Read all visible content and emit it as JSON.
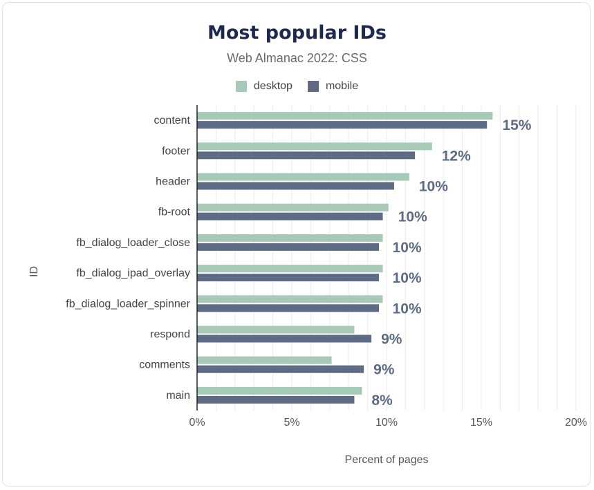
{
  "colors": {
    "desktop": "#a6c9b8",
    "mobile": "#5d6b85",
    "label": "#5d6b85",
    "grid": "#ebebeb",
    "axis": "#222222"
  },
  "chart_data": {
    "type": "bar",
    "orientation": "horizontal",
    "title": "Most popular IDs",
    "subtitle": "Web Almanac 2022: CSS",
    "xlabel": "Percent of pages",
    "ylabel": "ID",
    "xlim": [
      0,
      20
    ],
    "xticks": [
      "0%",
      "5%",
      "10%",
      "15%",
      "20%"
    ],
    "grid": true,
    "legend": "top-center",
    "categories": [
      "content",
      "footer",
      "header",
      "fb-root",
      "fb_dialog_loader_close",
      "fb_dialog_ipad_overlay",
      "fb_dialog_loader_spinner",
      "respond",
      "comments",
      "main"
    ],
    "series": [
      {
        "name": "desktop",
        "values": [
          15.6,
          12.4,
          11.2,
          10.1,
          9.8,
          9.8,
          9.8,
          8.3,
          7.1,
          8.7
        ]
      },
      {
        "name": "mobile",
        "values": [
          15.3,
          11.5,
          10.4,
          9.8,
          9.6,
          9.6,
          9.6,
          9.2,
          8.8,
          8.3
        ]
      }
    ],
    "data_labels": [
      "15%",
      "12%",
      "10%",
      "10%",
      "10%",
      "10%",
      "10%",
      "9%",
      "9%",
      "8%"
    ]
  }
}
